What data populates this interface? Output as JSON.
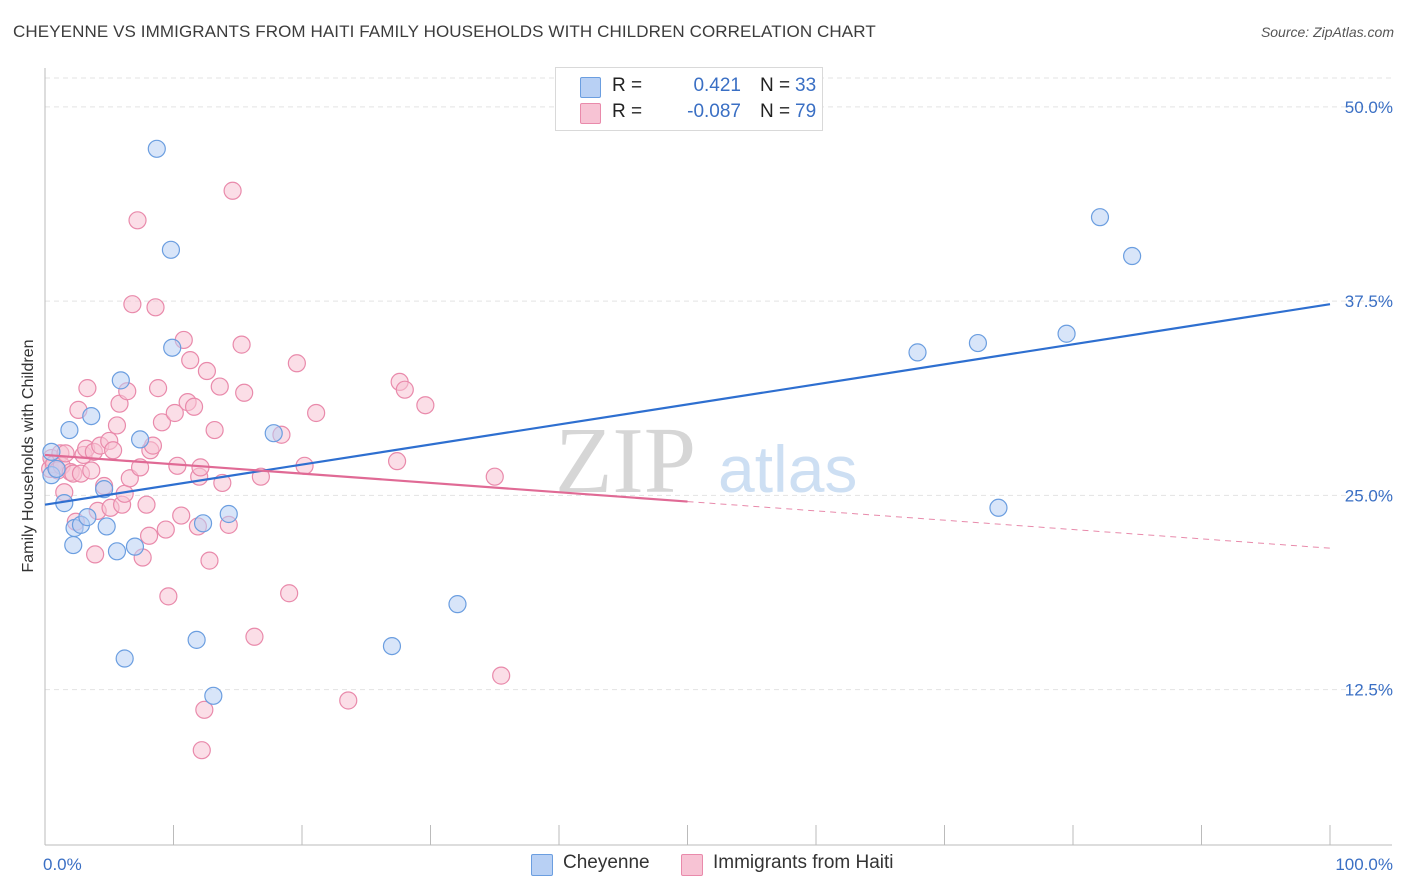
{
  "title": "CHEYENNE VS IMMIGRANTS FROM HAITI FAMILY HOUSEHOLDS WITH CHILDREN CORRELATION CHART",
  "source": "Source: ZipAtlas.com",
  "watermark": {
    "zip": "ZIP",
    "atlas": "atlas"
  },
  "legend": {
    "rows": [
      {
        "r_label": "R =",
        "r_value": "0.421",
        "n_label": "N =",
        "n_value": "33"
      },
      {
        "r_label": "R =",
        "r_value": "-0.087",
        "n_label": "N =",
        "n_value": "79"
      }
    ]
  },
  "chart_data": {
    "type": "scatter",
    "title": "CHEYENNE VS IMMIGRANTS FROM HAITI FAMILY HOUSEHOLDS WITH CHILDREN CORRELATION CHART",
    "xlabel": "",
    "ylabel": "Family Households with Children",
    "xlim": [
      0,
      100
    ],
    "ylim": [
      2.5,
      52.5
    ],
    "x_tick_labels": [
      "0.0%",
      "100.0%"
    ],
    "y_ticks": [
      12.5,
      25.0,
      37.5,
      50.0
    ],
    "y_tick_labels": [
      "12.5%",
      "25.0%",
      "37.5%",
      "50.0%"
    ],
    "grid": true,
    "legend_position": "bottom-center",
    "series": [
      {
        "name": "Cheyenne",
        "color": "#6b9ee0",
        "fill": "#b8d0f4",
        "r": 0.421,
        "n": 33,
        "trend": {
          "x0": 0,
          "y0": 24.4,
          "x1": 100,
          "y1": 37.3,
          "solid_until": 100
        },
        "points": [
          [
            0.5,
            27.8
          ],
          [
            0.5,
            26.3
          ],
          [
            0.9,
            26.7
          ],
          [
            1.5,
            24.5
          ],
          [
            1.9,
            29.2
          ],
          [
            2.2,
            21.8
          ],
          [
            2.3,
            22.9
          ],
          [
            2.8,
            23.1
          ],
          [
            3.3,
            23.6
          ],
          [
            3.6,
            30.1
          ],
          [
            4.6,
            25.4
          ],
          [
            4.8,
            23.0
          ],
          [
            5.6,
            21.4
          ],
          [
            5.9,
            32.4
          ],
          [
            6.2,
            14.5
          ],
          [
            7.0,
            21.7
          ],
          [
            7.4,
            28.6
          ],
          [
            8.7,
            47.3
          ],
          [
            9.8,
            40.8
          ],
          [
            9.9,
            34.5
          ],
          [
            11.8,
            15.7
          ],
          [
            12.3,
            23.2
          ],
          [
            13.1,
            12.1
          ],
          [
            14.3,
            23.8
          ],
          [
            17.8,
            29.0
          ],
          [
            27.0,
            15.3
          ],
          [
            32.1,
            18.0
          ],
          [
            67.9,
            34.2
          ],
          [
            74.2,
            24.2
          ],
          [
            72.6,
            34.8
          ],
          [
            79.5,
            35.4
          ],
          [
            82.1,
            42.9
          ],
          [
            84.6,
            40.4
          ]
        ]
      },
      {
        "name": "Immigrants from Haiti",
        "color": "#e98aab",
        "fill": "#f7c3d4",
        "r": -0.087,
        "n": 79,
        "trend": {
          "x0": 0,
          "y0": 27.6,
          "x1": 100,
          "y1": 21.6,
          "solid_until": 50
        },
        "points": [
          [
            0.4,
            26.7
          ],
          [
            0.5,
            27.4
          ],
          [
            0.7,
            27.0
          ],
          [
            1.0,
            26.6
          ],
          [
            1.2,
            27.7
          ],
          [
            1.3,
            26.9
          ],
          [
            1.5,
            25.2
          ],
          [
            1.6,
            27.7
          ],
          [
            2.0,
            26.5
          ],
          [
            2.2,
            26.4
          ],
          [
            2.4,
            23.3
          ],
          [
            2.6,
            30.5
          ],
          [
            2.8,
            26.4
          ],
          [
            3.0,
            27.6
          ],
          [
            3.2,
            28.0
          ],
          [
            3.3,
            31.9
          ],
          [
            3.6,
            26.6
          ],
          [
            3.8,
            27.8
          ],
          [
            3.9,
            21.2
          ],
          [
            4.1,
            24.0
          ],
          [
            4.3,
            28.2
          ],
          [
            4.6,
            25.6
          ],
          [
            5.0,
            28.5
          ],
          [
            5.1,
            24.2
          ],
          [
            5.3,
            27.9
          ],
          [
            5.6,
            29.5
          ],
          [
            5.8,
            30.9
          ],
          [
            6.0,
            24.4
          ],
          [
            6.2,
            25.1
          ],
          [
            6.4,
            31.7
          ],
          [
            6.6,
            26.1
          ],
          [
            6.8,
            37.3
          ],
          [
            7.2,
            42.7
          ],
          [
            7.4,
            26.8
          ],
          [
            7.6,
            21.0
          ],
          [
            7.9,
            24.4
          ],
          [
            8.1,
            22.4
          ],
          [
            8.2,
            27.9
          ],
          [
            8.4,
            28.2
          ],
          [
            8.6,
            37.1
          ],
          [
            8.8,
            31.9
          ],
          [
            9.1,
            29.7
          ],
          [
            9.4,
            22.8
          ],
          [
            9.6,
            18.5
          ],
          [
            10.1,
            30.3
          ],
          [
            10.3,
            26.9
          ],
          [
            10.6,
            23.7
          ],
          [
            10.8,
            35.0
          ],
          [
            11.1,
            31.0
          ],
          [
            11.3,
            33.7
          ],
          [
            11.6,
            30.7
          ],
          [
            11.9,
            23.0
          ],
          [
            12.0,
            26.2
          ],
          [
            12.1,
            26.8
          ],
          [
            12.4,
            11.2
          ],
          [
            12.6,
            33.0
          ],
          [
            12.8,
            20.8
          ],
          [
            13.2,
            29.2
          ],
          [
            13.6,
            32.0
          ],
          [
            13.8,
            25.8
          ],
          [
            14.3,
            23.1
          ],
          [
            14.6,
            44.6
          ],
          [
            15.3,
            34.7
          ],
          [
            15.5,
            31.6
          ],
          [
            16.3,
            15.9
          ],
          [
            16.8,
            26.2
          ],
          [
            18.4,
            28.9
          ],
          [
            19.0,
            18.7
          ],
          [
            19.6,
            33.5
          ],
          [
            20.2,
            26.9
          ],
          [
            21.1,
            30.3
          ],
          [
            23.6,
            11.8
          ],
          [
            27.4,
            27.2
          ],
          [
            27.6,
            32.3
          ],
          [
            28.0,
            31.8
          ],
          [
            29.6,
            30.8
          ],
          [
            35.0,
            26.2
          ],
          [
            35.5,
            13.4
          ],
          [
            12.2,
            8.6
          ]
        ]
      }
    ]
  }
}
